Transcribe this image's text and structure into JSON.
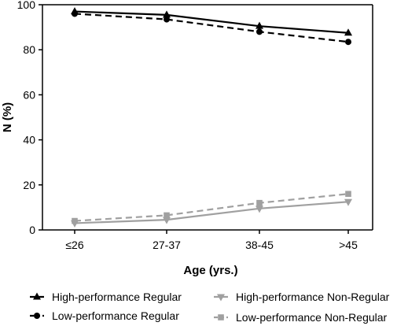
{
  "chart_data": {
    "type": "line",
    "categories": [
      "≤26",
      "27-37",
      "38-45",
      ">45"
    ],
    "xlabel": "Age (yrs.)",
    "ylabel": "N (%)",
    "ylim": [
      0,
      100
    ],
    "yticks": [
      0,
      20,
      40,
      60,
      80,
      100
    ],
    "grid": false,
    "legend_position": "bottom",
    "series": [
      {
        "name": "High-performance Regular",
        "values": [
          97.0,
          95.5,
          90.5,
          87.5
        ],
        "color": "#000000",
        "marker": "triangle-up",
        "dash": false
      },
      {
        "name": "Low-performance Regular",
        "values": [
          96.0,
          93.5,
          88.0,
          83.5
        ],
        "color": "#000000",
        "marker": "circle",
        "dash": true
      },
      {
        "name": "High-performance Non-Regular",
        "values": [
          3.0,
          4.5,
          9.5,
          12.5
        ],
        "color": "#a0a0a0",
        "marker": "triangle-down",
        "dash": false
      },
      {
        "name": "Low-performance Non-Regular",
        "values": [
          4.0,
          6.5,
          12.0,
          16.0
        ],
        "color": "#a0a0a0",
        "marker": "square",
        "dash": true
      }
    ]
  }
}
